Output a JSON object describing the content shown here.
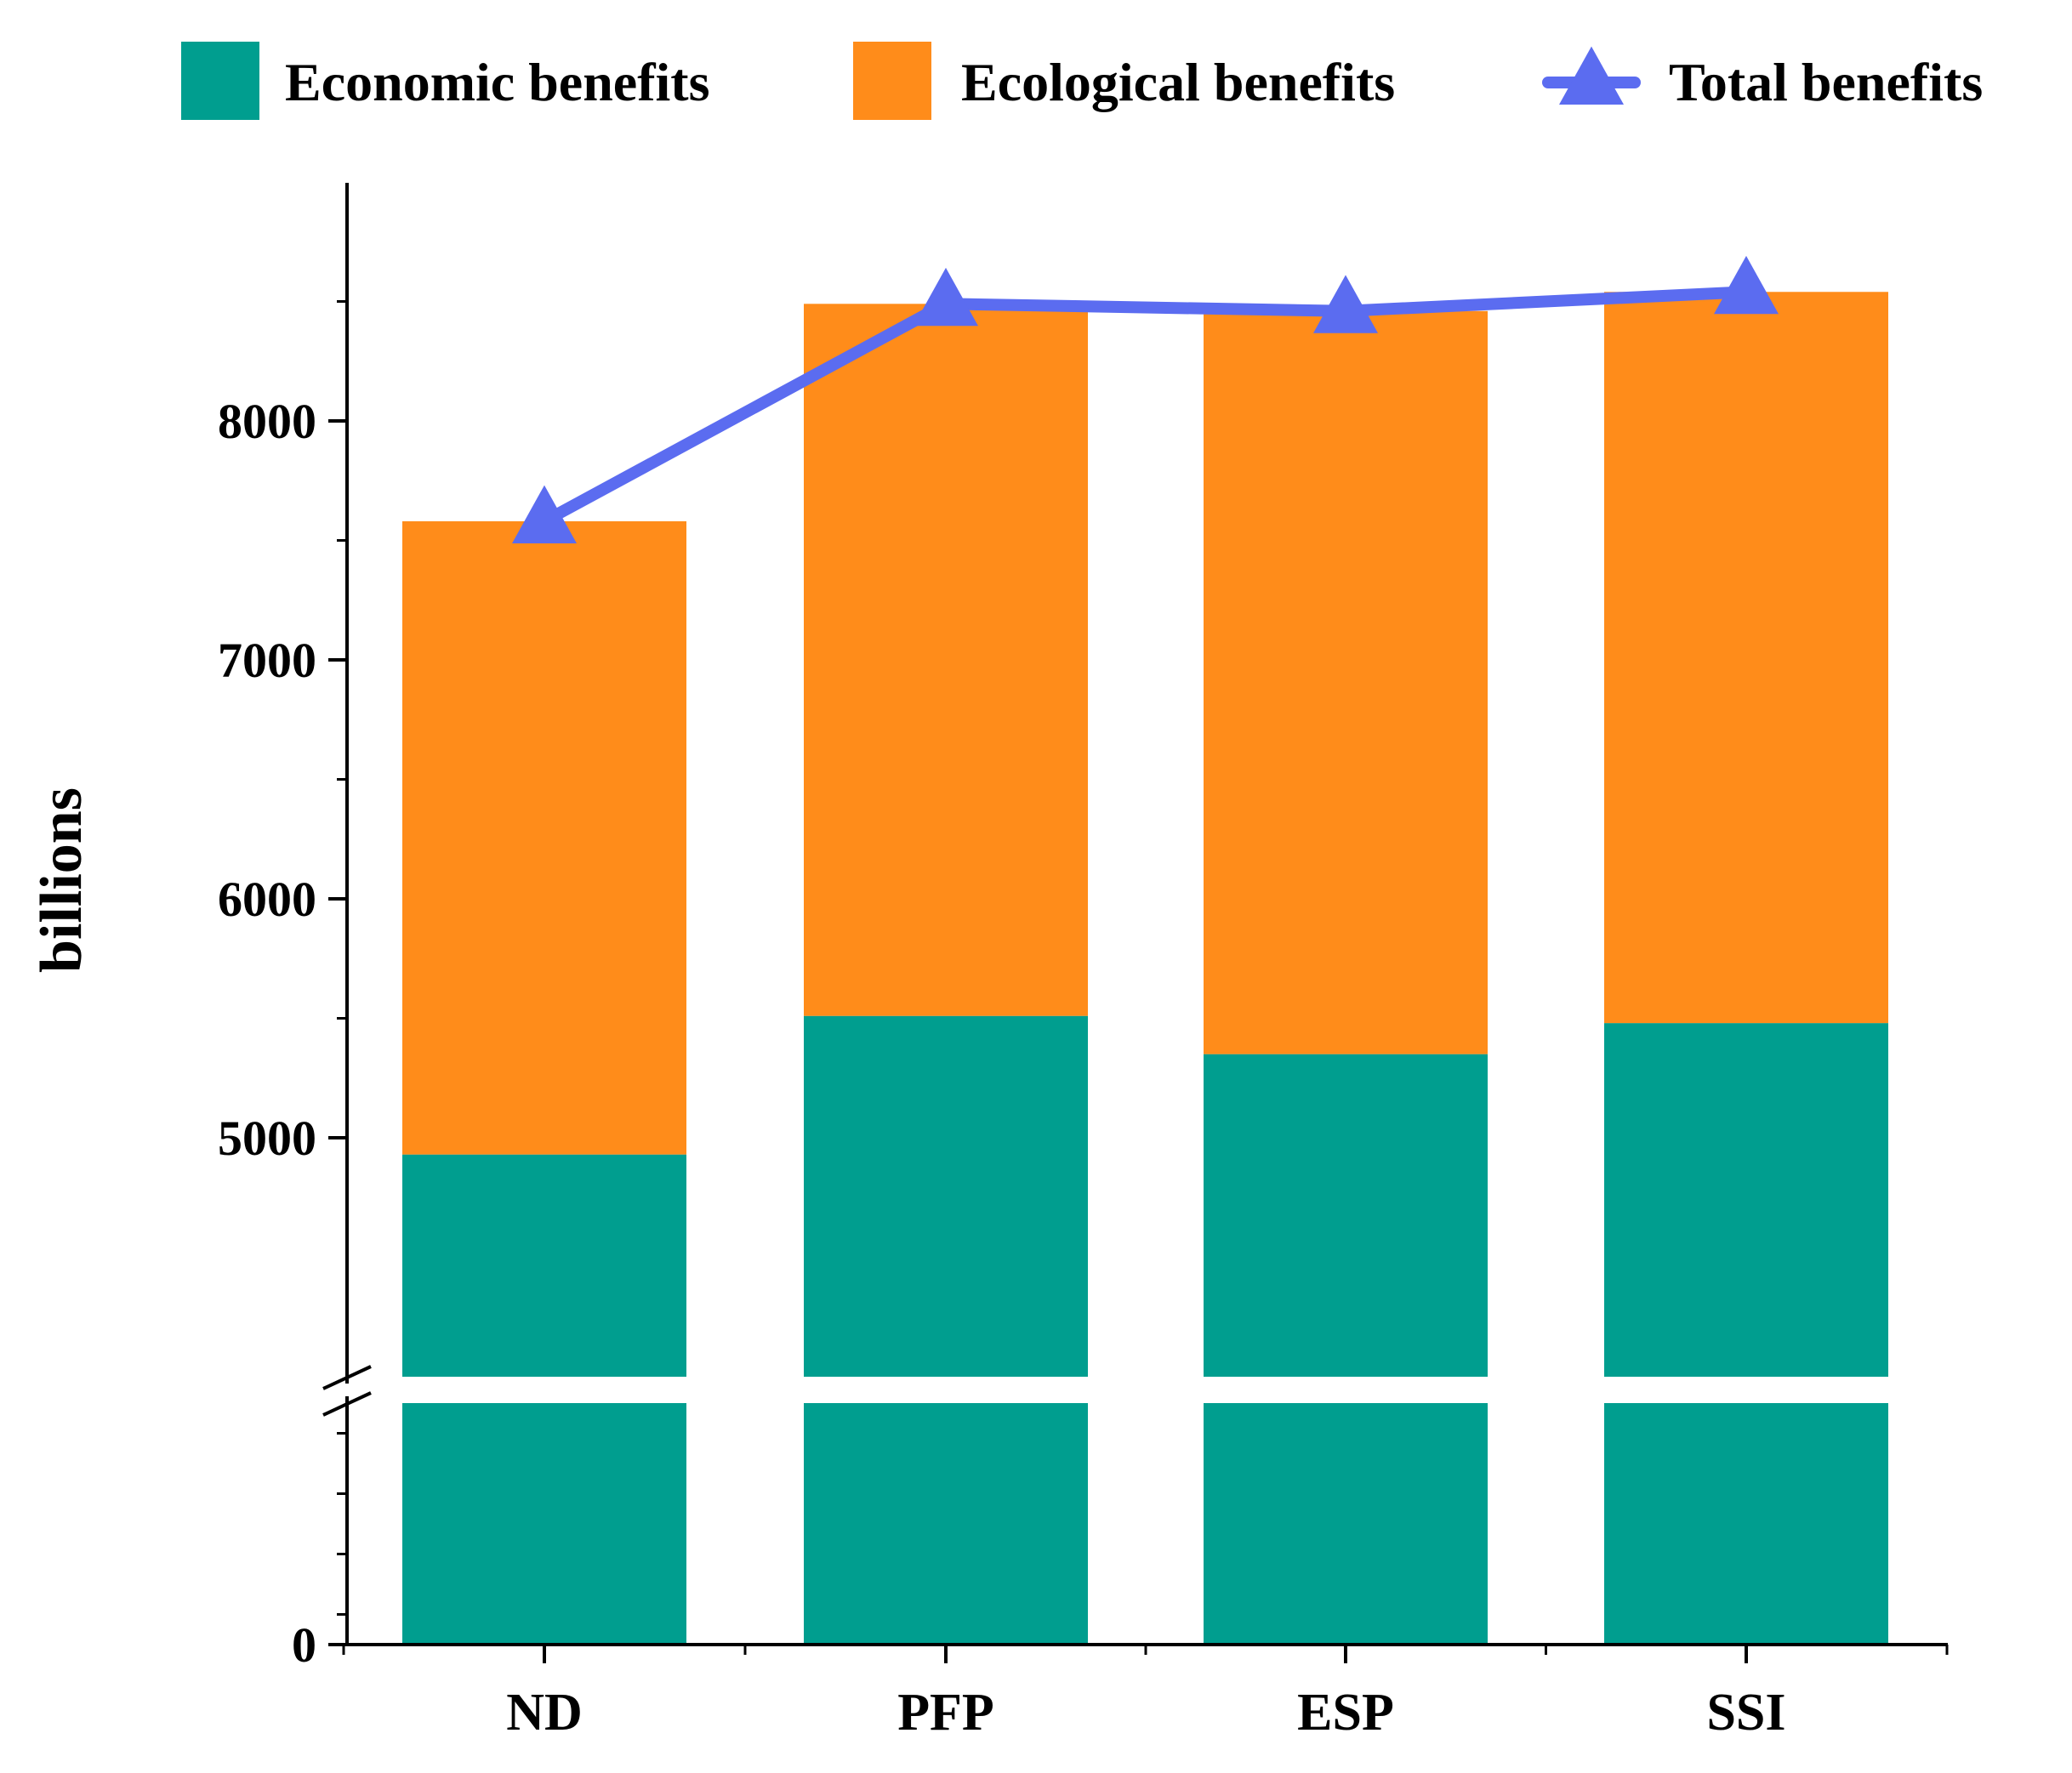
{
  "chart_data": {
    "type": "bar",
    "stacked": true,
    "categories": [
      "ND",
      "PFP",
      "ESP",
      "SSI"
    ],
    "series": [
      {
        "name": "Economic benefits",
        "kind": "bar",
        "color": "#009e8f",
        "values": [
          4930,
          5510,
          5350,
          5480
        ]
      },
      {
        "name": "Ecological benefits",
        "kind": "bar",
        "color": "#ff8c1a",
        "values": [
          2650,
          2980,
          3110,
          3060
        ]
      },
      {
        "name": "Total benefits",
        "kind": "line",
        "marker": "triangle-up",
        "color": "#5b6cf0",
        "values": [
          7580,
          8490,
          8460,
          8540
        ]
      }
    ],
    "title": "",
    "xlabel": "",
    "ylabel": "billions",
    "y_ticks": [
      "0",
      "5000",
      "6000",
      "7000",
      "8000"
    ],
    "y_axis_break": [
      0,
      4000
    ],
    "ylim": [
      0,
      9000
    ],
    "grid": false,
    "legend_position": "top"
  }
}
